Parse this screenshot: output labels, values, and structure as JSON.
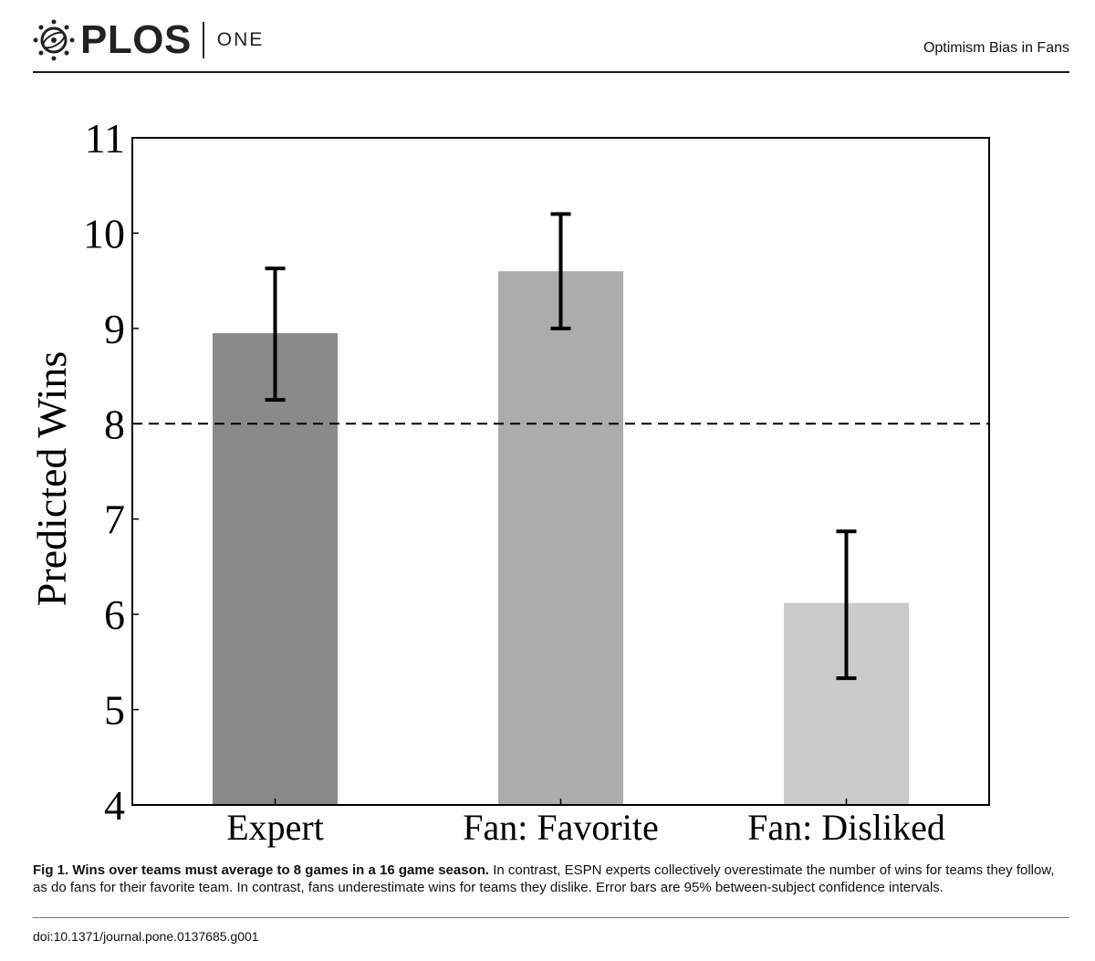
{
  "header": {
    "logo_text": "PLOS",
    "logo_sub": "ONE",
    "running_head": "Optimism Bias in Fans"
  },
  "chart_data": {
    "type": "bar",
    "title": "",
    "xlabel": "",
    "ylabel": "Predicted Wins",
    "categories": [
      "Expert",
      "Fan: Favorite",
      "Fan: Disliked"
    ],
    "values": [
      8.95,
      9.6,
      6.12
    ],
    "error_low": [
      8.25,
      9.0,
      5.33
    ],
    "error_high": [
      9.63,
      10.2,
      6.87
    ],
    "bar_colors": [
      "#8a8a8a",
      "#acacac",
      "#cbcbcb"
    ],
    "ylim": [
      4,
      11
    ],
    "yticks": [
      4,
      5,
      6,
      7,
      8,
      9,
      10,
      11
    ],
    "reference_line": 8,
    "grid": false
  },
  "caption": {
    "bold": "Fig 1. Wins over teams must average to 8 games in a 16 game season.",
    "text": " In contrast, ESPN experts collectively overestimate the number of wins for teams they follow, as do fans for their favorite team. In contrast, fans underestimate wins for teams they dislike. Error bars are 95% between-subject confidence intervals."
  },
  "doi": "doi:10.1371/journal.pone.0137685.g001"
}
